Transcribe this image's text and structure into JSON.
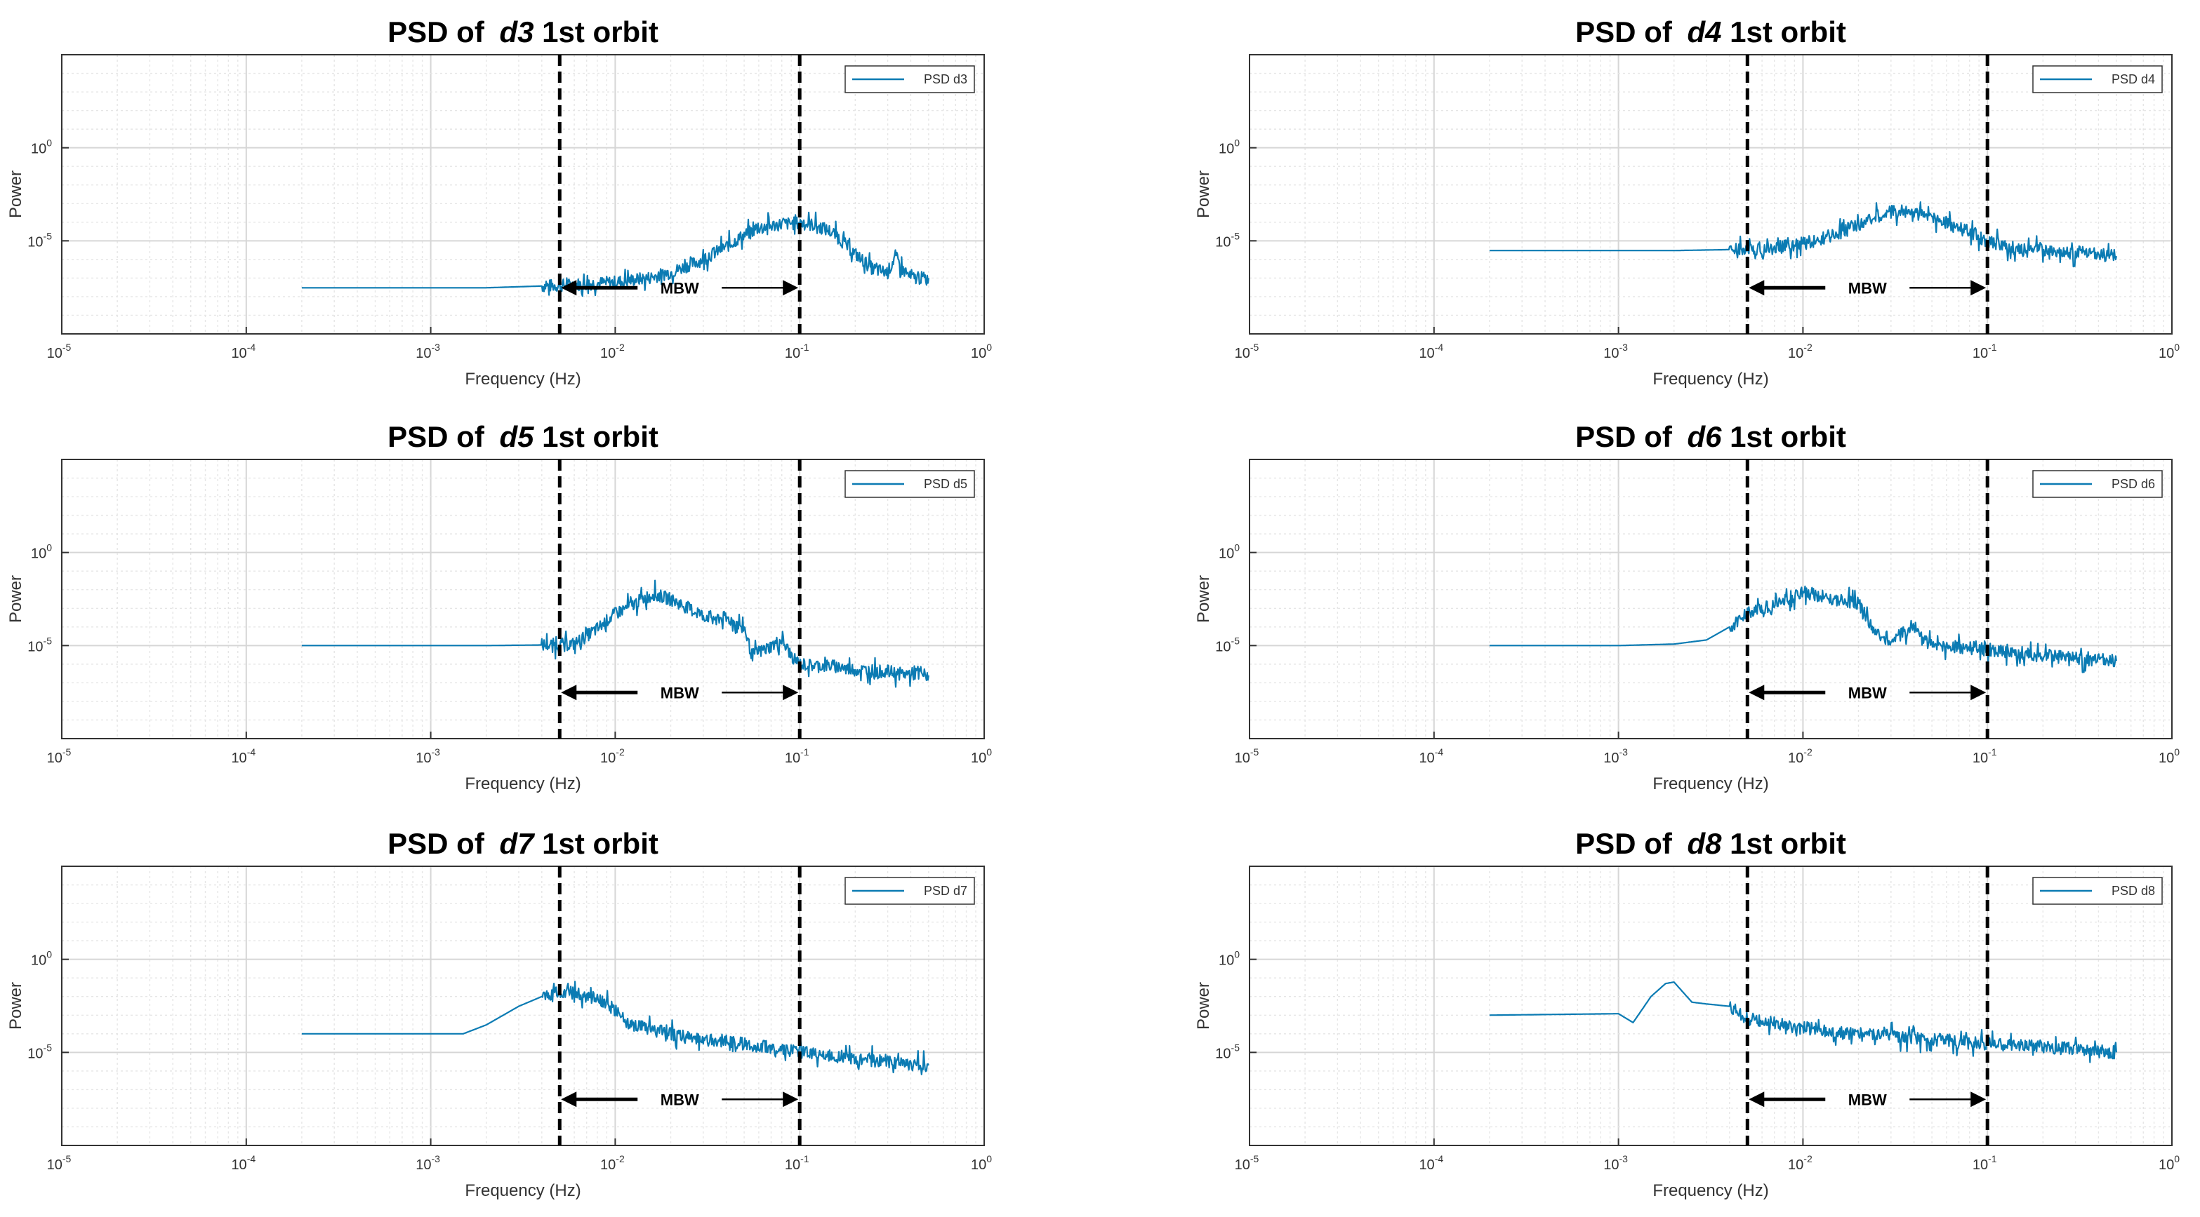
{
  "chart_data": [
    {
      "type": "line",
      "title_prefix": "PSD of ",
      "title_var": "d3",
      "title_suffix": " 1st orbit",
      "xlabel": "Frequency (Hz)",
      "ylabel": "Power",
      "xscale": "log",
      "yscale": "log",
      "xlim": [
        1e-05,
        1
      ],
      "ylim": [
        1e-10,
        100000
      ],
      "xticks": [
        {
          "b": "10",
          "e": "-5"
        },
        {
          "b": "10",
          "e": "-4"
        },
        {
          "b": "10",
          "e": "-3"
        },
        {
          "b": "10",
          "e": "-2"
        },
        {
          "b": "10",
          "e": "-1"
        },
        {
          "b": "10",
          "e": "0"
        }
      ],
      "yticks": [
        {
          "b": "10",
          "e": "0"
        },
        {
          "b": "10",
          "e": "-5"
        }
      ],
      "grid": true,
      "legend": {
        "label": "PSD d3",
        "position": "top-right"
      },
      "color": "#0b7bb3",
      "band": {
        "label": "MBW",
        "x1": 0.005,
        "x2": 0.1,
        "arrow_y": 3e-08
      },
      "series": [
        {
          "name": "PSD d3",
          "x": [
            0.0002,
            0.002,
            0.005,
            0.01,
            0.015,
            0.02,
            0.03,
            0.04,
            0.05,
            0.06,
            0.08,
            0.1,
            0.12,
            0.15,
            0.2,
            0.25,
            0.3,
            0.33,
            0.36,
            0.4,
            0.45,
            0.5
          ],
          "y": [
            3e-08,
            3e-08,
            4e-08,
            6e-08,
            1e-07,
            2e-07,
            1e-06,
            5e-06,
            2e-05,
            5e-05,
            8e-05,
            9e-05,
            7e-05,
            3e-05,
            2e-06,
            3e-07,
            2e-07,
            1.5e-06,
            3e-07,
            1e-07,
            1e-07,
            1e-07
          ]
        }
      ]
    },
    {
      "type": "line",
      "title_prefix": "PSD of ",
      "title_var": "d4",
      "title_suffix": " 1st orbit",
      "xlabel": "Frequency (Hz)",
      "ylabel": "Power",
      "xscale": "log",
      "yscale": "log",
      "xlim": [
        1e-05,
        1
      ],
      "ylim": [
        1e-10,
        100000
      ],
      "xticks": [
        {
          "b": "10",
          "e": "-5"
        },
        {
          "b": "10",
          "e": "-4"
        },
        {
          "b": "10",
          "e": "-3"
        },
        {
          "b": "10",
          "e": "-2"
        },
        {
          "b": "10",
          "e": "-1"
        },
        {
          "b": "10",
          "e": "0"
        }
      ],
      "yticks": [
        {
          "b": "10",
          "e": "0"
        },
        {
          "b": "10",
          "e": "-5"
        }
      ],
      "grid": true,
      "legend": {
        "label": "PSD d4",
        "position": "top-right"
      },
      "color": "#0b7bb3",
      "band": {
        "label": "MBW",
        "x1": 0.005,
        "x2": 0.1,
        "arrow_y": 3e-08
      },
      "series": [
        {
          "name": "PSD d4",
          "x": [
            0.0002,
            0.002,
            0.005,
            0.008,
            0.012,
            0.018,
            0.025,
            0.03,
            0.04,
            0.05,
            0.07,
            0.1,
            0.13,
            0.16,
            0.18,
            0.2,
            0.25,
            0.3,
            0.35,
            0.4,
            0.5
          ],
          "y": [
            3e-06,
            3e-06,
            3.5e-06,
            5e-06,
            1e-05,
            5e-05,
            0.0002,
            0.0004,
            0.0003,
            0.0002,
            5e-05,
            1e-05,
            5e-06,
            3e-06,
            6e-06,
            3e-06,
            2e-06,
            2.5e-06,
            2e-06,
            2e-06,
            1.5e-06
          ]
        }
      ]
    },
    {
      "type": "line",
      "title_prefix": "PSD of ",
      "title_var": "d5",
      "title_suffix": " 1st orbit",
      "xlabel": "Frequency (Hz)",
      "ylabel": "Power",
      "xscale": "log",
      "yscale": "log",
      "xlim": [
        1e-05,
        1
      ],
      "ylim": [
        1e-10,
        100000
      ],
      "xticks": [
        {
          "b": "10",
          "e": "-5"
        },
        {
          "b": "10",
          "e": "-4"
        },
        {
          "b": "10",
          "e": "-3"
        },
        {
          "b": "10",
          "e": "-2"
        },
        {
          "b": "10",
          "e": "-1"
        },
        {
          "b": "10",
          "e": "0"
        }
      ],
      "yticks": [
        {
          "b": "10",
          "e": "0"
        },
        {
          "b": "10",
          "e": "-5"
        }
      ],
      "grid": true,
      "legend": {
        "label": "PSD d5",
        "position": "top-right"
      },
      "color": "#0b7bb3",
      "band": {
        "label": "MBW",
        "x1": 0.005,
        "x2": 0.1,
        "arrow_y": 3e-08
      },
      "series": [
        {
          "name": "PSD d5",
          "x": [
            0.0002,
            0.002,
            0.005,
            0.006,
            0.008,
            0.01,
            0.013,
            0.016,
            0.02,
            0.025,
            0.03,
            0.035,
            0.04,
            0.05,
            0.055,
            0.065,
            0.08,
            0.09,
            0.1,
            0.12,
            0.15,
            0.2,
            0.3,
            0.35,
            0.4,
            0.5
          ],
          "y": [
            1e-05,
            1e-05,
            1.1e-05,
            1.2e-05,
            8e-05,
            0.0005,
            0.002,
            0.006,
            0.003,
            0.001,
            0.0004,
            0.0003,
            0.0003,
            0.0001,
            3e-06,
            6e-06,
            2e-05,
            3e-06,
            1e-06,
            8e-07,
            8e-07,
            5e-07,
            4e-07,
            3e-07,
            3e-07,
            2.5e-07
          ]
        }
      ]
    },
    {
      "type": "line",
      "title_prefix": "PSD of ",
      "title_var": "d6",
      "title_suffix": " 1st orbit",
      "xlabel": "Frequency (Hz)",
      "ylabel": "Power",
      "xscale": "log",
      "yscale": "log",
      "xlim": [
        1e-05,
        1
      ],
      "ylim": [
        1e-10,
        100000
      ],
      "xticks": [
        {
          "b": "10",
          "e": "-5"
        },
        {
          "b": "10",
          "e": "-4"
        },
        {
          "b": "10",
          "e": "-3"
        },
        {
          "b": "10",
          "e": "-2"
        },
        {
          "b": "10",
          "e": "-1"
        },
        {
          "b": "10",
          "e": "0"
        }
      ],
      "yticks": [
        {
          "b": "10",
          "e": "0"
        },
        {
          "b": "10",
          "e": "-5"
        }
      ],
      "grid": true,
      "legend": {
        "label": "PSD d6",
        "position": "top-right"
      },
      "color": "#0b7bb3",
      "band": {
        "label": "MBW",
        "x1": 0.005,
        "x2": 0.1,
        "arrow_y": 3e-08
      },
      "series": [
        {
          "name": "PSD d6",
          "x": [
            0.0002,
            0.001,
            0.002,
            0.003,
            0.004,
            0.005,
            0.006,
            0.008,
            0.01,
            0.012,
            0.015,
            0.02,
            0.025,
            0.03,
            0.04,
            0.045,
            0.05,
            0.07,
            0.08,
            0.1,
            0.15,
            0.2,
            0.3,
            0.5
          ],
          "y": [
            1e-05,
            1e-05,
            1.2e-05,
            2e-05,
            0.0001,
            0.0005,
            0.001,
            0.003,
            0.008,
            0.005,
            0.003,
            0.002,
            4e-05,
            2e-05,
            0.0001,
            2e-05,
            1e-05,
            8e-06,
            7e-06,
            6e-06,
            4e-06,
            3e-06,
            2e-06,
            1.5e-06
          ]
        }
      ]
    },
    {
      "type": "line",
      "title_prefix": "PSD of ",
      "title_var": "d7",
      "title_suffix": " 1st orbit",
      "xlabel": "Frequency (Hz)",
      "ylabel": "Power",
      "xscale": "log",
      "yscale": "log",
      "xlim": [
        1e-05,
        1
      ],
      "ylim": [
        1e-10,
        100000
      ],
      "xticks": [
        {
          "b": "10",
          "e": "-5"
        },
        {
          "b": "10",
          "e": "-4"
        },
        {
          "b": "10",
          "e": "-3"
        },
        {
          "b": "10",
          "e": "-2"
        },
        {
          "b": "10",
          "e": "-1"
        },
        {
          "b": "10",
          "e": "0"
        }
      ],
      "yticks": [
        {
          "b": "10",
          "e": "0"
        },
        {
          "b": "10",
          "e": "-5"
        }
      ],
      "grid": true,
      "legend": {
        "label": "PSD d7",
        "position": "top-right"
      },
      "color": "#0b7bb3",
      "band": {
        "label": "MBW",
        "x1": 0.005,
        "x2": 0.1,
        "arrow_y": 3e-08
      },
      "series": [
        {
          "name": "PSD d7",
          "x": [
            0.0002,
            0.001,
            0.0015,
            0.002,
            0.003,
            0.004,
            0.005,
            0.006,
            0.008,
            0.01,
            0.012,
            0.02,
            0.025,
            0.03,
            0.04,
            0.05,
            0.1,
            0.2,
            0.3,
            0.5
          ],
          "y": [
            0.0001,
            0.0001,
            0.0001,
            0.0003,
            0.003,
            0.01,
            0.02,
            0.015,
            0.008,
            0.002,
            0.0003,
            0.0001,
            6e-05,
            5e-05,
            4e-05,
            3e-05,
            1e-05,
            5e-06,
            3e-06,
            2e-06
          ]
        }
      ]
    },
    {
      "type": "line",
      "title_prefix": "PSD of ",
      "title_var": "d8",
      "title_suffix": " 1st orbit",
      "xlabel": "Frequency (Hz)",
      "ylabel": "Power",
      "xscale": "log",
      "yscale": "log",
      "xlim": [
        1e-05,
        1
      ],
      "ylim": [
        1e-10,
        100000
      ],
      "xticks": [
        {
          "b": "10",
          "e": "-5"
        },
        {
          "b": "10",
          "e": "-4"
        },
        {
          "b": "10",
          "e": "-3"
        },
        {
          "b": "10",
          "e": "-2"
        },
        {
          "b": "10",
          "e": "-1"
        },
        {
          "b": "10",
          "e": "0"
        }
      ],
      "yticks": [
        {
          "b": "10",
          "e": "0"
        },
        {
          "b": "10",
          "e": "-5"
        }
      ],
      "grid": true,
      "legend": {
        "label": "PSD d8",
        "position": "top-right"
      },
      "color": "#0b7bb3",
      "band": {
        "label": "MBW",
        "x1": 0.005,
        "x2": 0.1,
        "arrow_y": 3e-08
      },
      "series": [
        {
          "name": "PSD d8",
          "x": [
            0.0002,
            0.001,
            0.0012,
            0.0015,
            0.0018,
            0.002,
            0.0025,
            0.003,
            0.004,
            0.005,
            0.006,
            0.008,
            0.01,
            0.02,
            0.05,
            0.1,
            0.2,
            0.5
          ],
          "y": [
            0.001,
            0.0012,
            0.0004,
            0.01,
            0.05,
            0.06,
            0.005,
            0.004,
            0.003,
            0.0006,
            0.0005,
            0.0003,
            0.0002,
            0.0001,
            5e-05,
            3e-05,
            2e-05,
            1e-05
          ]
        }
      ]
    }
  ]
}
